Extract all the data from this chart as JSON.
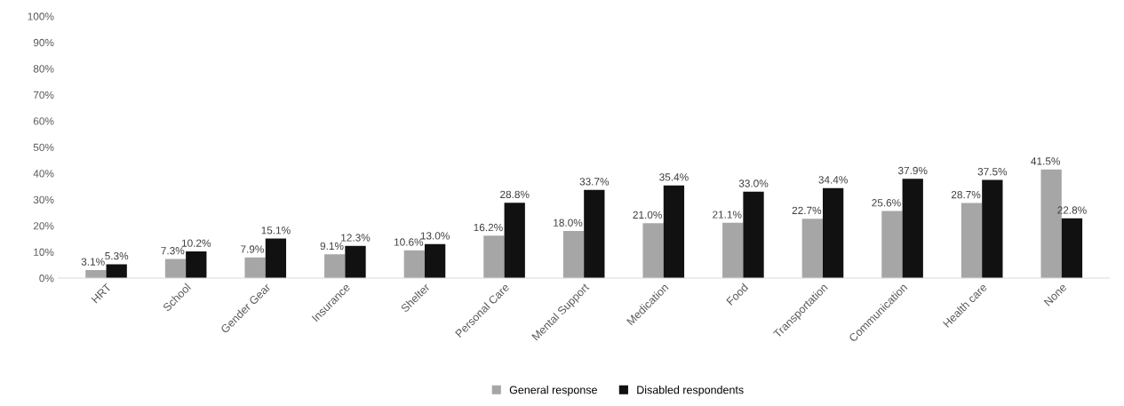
{
  "chart_data": {
    "type": "bar",
    "categories": [
      "HRT",
      "School",
      "Gender Gear",
      "Insurance",
      "Shelter",
      "Personal Care",
      "Mental Support",
      "Medication",
      "Food",
      "Transportation",
      "Communication",
      "Health care",
      "None"
    ],
    "series": [
      {
        "name": "General response",
        "color": "#a6a6a6",
        "values": [
          3.1,
          7.3,
          7.9,
          9.1,
          10.6,
          16.2,
          18.0,
          21.0,
          21.1,
          22.7,
          25.6,
          28.7,
          41.5
        ],
        "value_labels": [
          "3.1%",
          "7.3%",
          "7.9%",
          "9.1%",
          "10.6%",
          "16.2%",
          "18.0%",
          "21.0%",
          "21.1%",
          "22.7%",
          "25.6%",
          "28.7%",
          "41.5%"
        ]
      },
      {
        "name": "Disabled respondents",
        "color": "#111111",
        "values": [
          5.3,
          10.2,
          15.1,
          12.3,
          13.0,
          28.8,
          33.7,
          35.4,
          33.0,
          34.4,
          37.9,
          37.5,
          22.8
        ],
        "value_labels": [
          "5.3%",
          "10.2%",
          "15.1%",
          "12.3%",
          "13.0%",
          "28.8%",
          "33.7%",
          "35.4%",
          "33.0%",
          "34.4%",
          "37.9%",
          "37.5%",
          "22.8%"
        ]
      }
    ],
    "ylim": [
      0,
      100
    ],
    "yticks": [
      {
        "value": 0,
        "label": "0%"
      },
      {
        "value": 10,
        "label": "10%"
      },
      {
        "value": 20,
        "label": "20%"
      },
      {
        "value": 30,
        "label": "30%"
      },
      {
        "value": 40,
        "label": "40%"
      },
      {
        "value": 50,
        "label": "50%"
      },
      {
        "value": 60,
        "label": "60%"
      },
      {
        "value": 70,
        "label": "70%"
      },
      {
        "value": 80,
        "label": "80%"
      },
      {
        "value": 90,
        "label": "90%"
      },
      {
        "value": 100,
        "label": "100%"
      }
    ],
    "grid": false,
    "legend": "bottom"
  }
}
